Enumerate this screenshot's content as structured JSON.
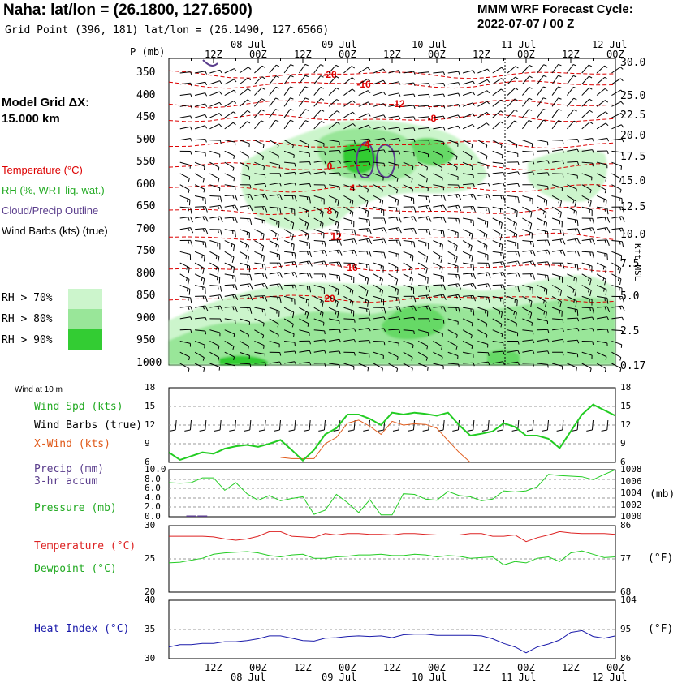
{
  "header": {
    "title": "Naha:  lat/lon = (26.1800, 127.6500)",
    "grid_point": "Grid Point (396, 181) lat/lon = (26.1490, 127.6566)",
    "forecast_line1": "MMM WRF Forecast Cycle:",
    "forecast_line2": "2022-07-07 / 00  Z",
    "model_grid_line1": "Model Grid ΔX:",
    "model_grid_line2": " 15.000 km"
  },
  "legend": {
    "temperature": "Temperature (°C)",
    "rh": "RH (%, WRT liq. wat.)",
    "cloud": "Cloud/Precip Outline",
    "wind": "Wind Barbs (kts) (true)",
    "rh70": "RH > 70%",
    "rh80": "RH > 80%",
    "rh90": "RH > 90%",
    "colors": {
      "rh70": "#ccf5cc",
      "rh80": "#99e699",
      "rh90": "#33cc33",
      "temp": "#dd0000",
      "cloud": "#5a3d8c"
    }
  },
  "time_axis": {
    "top_dates": [
      "08 Jul",
      "09 Jul",
      "10 Jul",
      "11 Jul",
      "12 Jul"
    ],
    "bottom_dates": [
      "08 Jul",
      "09 Jul",
      "10 Jul",
      "11 Jul",
      "12 Jul"
    ],
    "hour_labels": [
      "12Z",
      "00Z",
      "12Z",
      "00Z",
      "12Z",
      "00Z",
      "12Z",
      "00Z",
      "12Z",
      "00Z"
    ]
  },
  "sounding_panel": {
    "p_label": "P (mb)",
    "right_axis_label": "Kft MSL",
    "pressure_labels": [
      "350",
      "400",
      "450",
      "500",
      "550",
      "600",
      "650",
      "700",
      "750",
      "800",
      "850",
      "900",
      "950",
      "1000"
    ],
    "height_labels": [
      "30.0",
      "25.0",
      "22.5",
      "20.0",
      "17.5",
      "15.0",
      "12.5",
      "10.0",
      "7.5",
      "5.0",
      "2.5",
      "0.17"
    ],
    "temp_labels": [
      "-20",
      "-16",
      "-12",
      "-8",
      "-4",
      "0",
      "4",
      "8",
      "12",
      "16",
      "20"
    ]
  },
  "wind_panel": {
    "title": "Wind at 10 m",
    "spd_label": "Wind Spd (kts)",
    "barbs_label": "Wind Barbs (true)",
    "xwind_label": "X-Wind (kts)",
    "left_ticks": [
      "18",
      "15",
      "12",
      "9",
      "6"
    ],
    "right_ticks": [
      "18",
      "15",
      "12",
      "9",
      "6"
    ],
    "colors": {
      "spd": "#22cc22",
      "xwind": "#e05a1a"
    }
  },
  "precip_panel": {
    "precip_label": "Precip (mm)",
    "accum_label": "3-hr accum",
    "pressure_label": "Pressure (mb)",
    "left_ticks": [
      "10.0",
      "8.0",
      "6.0",
      "4.0",
      "2.0",
      "0.0"
    ],
    "right_ticks": [
      "1008",
      "1006",
      "1004",
      "1002",
      "1000"
    ],
    "right_unit": "(mb)",
    "colors": {
      "precip": "#5a3d8c",
      "pressure": "#22cc22"
    }
  },
  "temp_panel": {
    "temp_label": "Temperature (°C)",
    "dew_label": "Dewpoint (°C)",
    "left_ticks": [
      "30",
      "25",
      "20"
    ],
    "right_ticks": [
      "86",
      "77",
      "68"
    ],
    "right_unit": "(°F)",
    "colors": {
      "temp": "#dd2222",
      "dew": "#22cc22"
    }
  },
  "heat_panel": {
    "label": "Heat Index (°C)",
    "left_ticks": [
      "40",
      "35",
      "30"
    ],
    "right_ticks": [
      "104",
      "95",
      "86"
    ],
    "right_unit": "(°F)",
    "colors": {
      "heat": "#1a1aaa"
    }
  },
  "chart_data": [
    {
      "type": "line",
      "title": "Wind at 10 m",
      "x_hours": [
        0,
        3,
        6,
        9,
        12,
        15,
        18,
        21,
        24,
        27,
        30,
        33,
        36,
        39,
        42,
        45,
        48,
        51,
        54,
        57,
        60,
        63,
        66,
        69,
        72,
        75,
        78,
        81,
        84,
        87,
        90,
        93,
        96,
        99,
        102,
        105,
        108,
        111,
        114,
        117,
        120
      ],
      "ylim": [
        6,
        18
      ],
      "series": [
        {
          "name": "Wind Spd (kts)",
          "values": [
            7.6,
            6.4,
            7.0,
            7.6,
            7.4,
            8.2,
            8.6,
            8.8,
            8.5,
            9.0,
            9.6,
            8.0,
            6.3,
            8.0,
            10.5,
            11.5,
            13.7,
            13.7,
            13.0,
            12.0,
            14.0,
            13.7,
            14.0,
            13.8,
            13.5,
            14.0,
            12.0,
            10.3,
            10.6,
            11.0,
            12.3,
            11.7,
            10.3,
            10.3,
            9.8,
            8.3,
            11.0,
            13.7,
            15.3,
            14.4,
            13.5
          ]
        },
        {
          "name": "X-Wind (kts)",
          "values": [
            null,
            null,
            null,
            null,
            null,
            null,
            null,
            null,
            null,
            null,
            6.8,
            6.6,
            null,
            6.6,
            9.0,
            10.0,
            12.3,
            12.8,
            11.8,
            10.5,
            12.6,
            12.0,
            12.2,
            12.1,
            11.5,
            9.5,
            7.6,
            6.0,
            null,
            null,
            null,
            null,
            null,
            null,
            null,
            null,
            null,
            null,
            null,
            null,
            null
          ]
        }
      ]
    },
    {
      "type": "line",
      "title": "Precip / Pressure",
      "x_hours": [
        0,
        3,
        6,
        9,
        12,
        15,
        18,
        21,
        24,
        27,
        30,
        33,
        36,
        39,
        42,
        45,
        48,
        51,
        54,
        57,
        60,
        63,
        66,
        69,
        72,
        75,
        78,
        81,
        84,
        87,
        90,
        93,
        96,
        99,
        102,
        105,
        108,
        111,
        114,
        117,
        120
      ],
      "series": [
        {
          "name": "Pressure (mb)",
          "ylim": [
            1000,
            1008
          ],
          "values": [
            1005.8,
            1005.7,
            1005.8,
            1006.6,
            1006.6,
            1004.5,
            1005.8,
            1003.9,
            1002.8,
            1003.6,
            1002.7,
            1003.1,
            1003.4,
            1000.4,
            1001.1,
            1003.8,
            1002.4,
            1000.7,
            1002.9,
            1000.3,
            1000.3,
            1003.9,
            1003.8,
            1003.0,
            1002.8,
            1004.3,
            1003.6,
            1003.4,
            1002.7,
            1003.0,
            1004.4,
            1004.2,
            1004.4,
            1005.1,
            1007.2,
            1007.0,
            1006.9,
            1006.8,
            1006.3,
            1007.2,
            1008.0
          ]
        },
        {
          "name": "Precip (mm)",
          "ylim": [
            0,
            10
          ],
          "values": [
            0,
            0,
            0.1,
            0.1,
            0,
            0,
            0,
            0,
            0,
            0,
            0,
            0,
            0,
            0,
            0,
            0,
            0,
            0,
            0,
            0,
            0,
            0,
            0,
            0,
            0,
            0,
            0,
            0,
            0,
            0,
            0,
            0,
            0,
            0,
            0,
            0,
            0,
            0,
            0,
            0,
            0
          ]
        }
      ]
    },
    {
      "type": "line",
      "title": "Temperature / Dewpoint",
      "x_hours": [
        0,
        3,
        6,
        9,
        12,
        15,
        18,
        21,
        24,
        27,
        30,
        33,
        36,
        39,
        42,
        45,
        48,
        51,
        54,
        57,
        60,
        63,
        66,
        69,
        72,
        75,
        78,
        81,
        84,
        87,
        90,
        93,
        96,
        99,
        102,
        105,
        108,
        111,
        114,
        117,
        120
      ],
      "ylim": [
        20,
        30
      ],
      "series": [
        {
          "name": "Temperature (°C)",
          "values": [
            28.4,
            28.4,
            28.4,
            28.4,
            28.3,
            28.0,
            27.8,
            28.0,
            28.4,
            29.1,
            29.1,
            28.4,
            28.3,
            28.2,
            28.8,
            28.6,
            28.8,
            28.8,
            28.7,
            28.7,
            28.6,
            28.8,
            28.8,
            28.7,
            28.6,
            28.6,
            28.6,
            28.8,
            28.8,
            28.4,
            28.4,
            28.6,
            27.6,
            28.2,
            28.6,
            29.1,
            28.9,
            28.8,
            28.8,
            28.8,
            28.7
          ]
        },
        {
          "name": "Dewpoint (°C)",
          "values": [
            24.4,
            24.5,
            24.8,
            25.1,
            25.7,
            25.9,
            26.0,
            26.1,
            25.9,
            25.5,
            25.3,
            25.6,
            25.7,
            25.1,
            25.1,
            25.3,
            25.4,
            25.6,
            25.6,
            25.7,
            25.5,
            25.5,
            25.7,
            25.6,
            25.3,
            25.5,
            25.4,
            25.1,
            25.2,
            25.3,
            24.1,
            24.6,
            24.4,
            25.1,
            25.3,
            24.6,
            25.9,
            26.2,
            25.7,
            25.2,
            25.3
          ]
        }
      ]
    },
    {
      "type": "line",
      "title": "Heat Index",
      "x_hours": [
        0,
        3,
        6,
        9,
        12,
        15,
        18,
        21,
        24,
        27,
        30,
        33,
        36,
        39,
        42,
        45,
        48,
        51,
        54,
        57,
        60,
        63,
        66,
        69,
        72,
        75,
        78,
        81,
        84,
        87,
        90,
        93,
        96,
        99,
        102,
        105,
        108,
        111,
        114,
        117,
        120
      ],
      "ylim": [
        30,
        40
      ],
      "series": [
        {
          "name": "Heat Index (°C)",
          "values": [
            32.0,
            32.4,
            32.4,
            32.6,
            32.6,
            32.9,
            32.9,
            33.1,
            33.4,
            33.9,
            33.9,
            33.5,
            33.1,
            33.0,
            33.5,
            33.6,
            33.8,
            33.9,
            33.8,
            33.9,
            33.6,
            34.1,
            34.2,
            34.2,
            34.0,
            34.0,
            34.0,
            34.0,
            33.9,
            33.4,
            32.6,
            32.0,
            31.0,
            32.0,
            32.5,
            33.2,
            34.5,
            34.8,
            33.8,
            33.5,
            33.9
          ]
        }
      ]
    }
  ]
}
